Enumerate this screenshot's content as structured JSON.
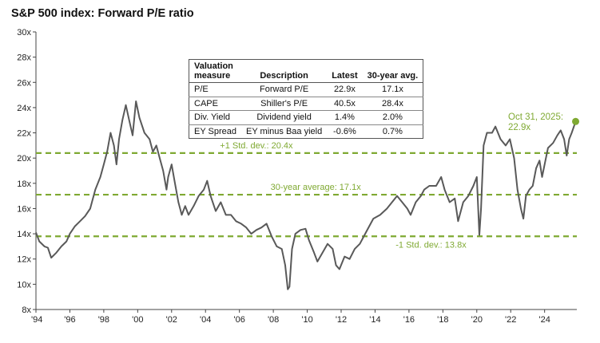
{
  "title": "S&P 500 index: Forward P/E ratio",
  "colors": {
    "line": "#595959",
    "reference": "#7fa932",
    "text": "#222222"
  },
  "chart_data": {
    "type": "line",
    "title": "S&P 500 index: Forward P/E ratio",
    "xlabel": "",
    "ylabel": "",
    "xlim": [
      1994,
      2025.9
    ],
    "ylim": [
      8,
      30
    ],
    "yticks": [
      8,
      10,
      12,
      14,
      16,
      18,
      20,
      22,
      24,
      26,
      28,
      30
    ],
    "ytick_labels": [
      "8x",
      "10x",
      "12x",
      "14x",
      "16x",
      "18x",
      "20x",
      "22x",
      "24x",
      "26x",
      "28x",
      "30x"
    ],
    "xticks": [
      1994,
      1996,
      1998,
      2000,
      2002,
      2004,
      2006,
      2008,
      2010,
      2012,
      2014,
      2016,
      2018,
      2020,
      2022,
      2024
    ],
    "xtick_labels": [
      "'94",
      "'96",
      "'98",
      "'00",
      "'02",
      "'04",
      "'06",
      "'08",
      "'10",
      "'12",
      "'14",
      "'16",
      "'18",
      "'20",
      "'22",
      "'24"
    ],
    "grid": false,
    "series": [
      {
        "points": [
          [
            1994.0,
            14.1
          ],
          [
            1994.2,
            13.4
          ],
          [
            1994.5,
            13.0
          ],
          [
            1994.7,
            12.9
          ],
          [
            1994.9,
            12.1
          ],
          [
            1995.2,
            12.5
          ],
          [
            1995.5,
            13.0
          ],
          [
            1995.8,
            13.4
          ],
          [
            1996.0,
            14.0
          ],
          [
            1996.3,
            14.6
          ],
          [
            1996.6,
            15.0
          ],
          [
            1996.9,
            15.4
          ],
          [
            1997.2,
            16.0
          ],
          [
            1997.5,
            17.5
          ],
          [
            1997.8,
            18.5
          ],
          [
            1998.0,
            19.5
          ],
          [
            1998.2,
            20.5
          ],
          [
            1998.4,
            22.0
          ],
          [
            1998.6,
            21.0
          ],
          [
            1998.75,
            19.5
          ],
          [
            1998.9,
            21.5
          ],
          [
            1999.1,
            23.0
          ],
          [
            1999.3,
            24.2
          ],
          [
            1999.5,
            23.0
          ],
          [
            1999.7,
            21.8
          ],
          [
            1999.9,
            24.5
          ],
          [
            2000.1,
            23.2
          ],
          [
            2000.4,
            22.0
          ],
          [
            2000.7,
            21.5
          ],
          [
            2000.9,
            20.5
          ],
          [
            2001.1,
            21.0
          ],
          [
            2001.3,
            20.0
          ],
          [
            2001.5,
            19.0
          ],
          [
            2001.7,
            17.5
          ],
          [
            2001.8,
            18.5
          ],
          [
            2002.0,
            19.5
          ],
          [
            2002.2,
            18.0
          ],
          [
            2002.4,
            16.5
          ],
          [
            2002.6,
            15.5
          ],
          [
            2002.8,
            16.2
          ],
          [
            2003.0,
            15.5
          ],
          [
            2003.3,
            16.2
          ],
          [
            2003.6,
            17.0
          ],
          [
            2003.9,
            17.5
          ],
          [
            2004.1,
            18.2
          ],
          [
            2004.3,
            17.0
          ],
          [
            2004.6,
            15.8
          ],
          [
            2004.9,
            16.5
          ],
          [
            2005.2,
            15.5
          ],
          [
            2005.5,
            15.5
          ],
          [
            2005.8,
            15.0
          ],
          [
            2006.1,
            14.8
          ],
          [
            2006.4,
            14.5
          ],
          [
            2006.7,
            14.0
          ],
          [
            2007.0,
            14.3
          ],
          [
            2007.3,
            14.5
          ],
          [
            2007.6,
            14.8
          ],
          [
            2007.9,
            13.8
          ],
          [
            2008.2,
            13.0
          ],
          [
            2008.5,
            12.8
          ],
          [
            2008.7,
            11.5
          ],
          [
            2008.85,
            9.6
          ],
          [
            2008.95,
            9.8
          ],
          [
            2009.1,
            12.8
          ],
          [
            2009.3,
            14.0
          ],
          [
            2009.6,
            14.3
          ],
          [
            2009.9,
            14.4
          ],
          [
            2010.1,
            13.5
          ],
          [
            2010.4,
            12.5
          ],
          [
            2010.6,
            11.8
          ],
          [
            2010.9,
            12.5
          ],
          [
            2011.2,
            13.2
          ],
          [
            2011.5,
            12.8
          ],
          [
            2011.7,
            11.5
          ],
          [
            2011.9,
            11.2
          ],
          [
            2012.2,
            12.2
          ],
          [
            2012.5,
            12.0
          ],
          [
            2012.8,
            12.8
          ],
          [
            2013.1,
            13.2
          ],
          [
            2013.5,
            14.2
          ],
          [
            2013.9,
            15.2
          ],
          [
            2014.3,
            15.5
          ],
          [
            2014.7,
            16.0
          ],
          [
            2015.0,
            16.5
          ],
          [
            2015.3,
            17.0
          ],
          [
            2015.6,
            16.5
          ],
          [
            2015.9,
            16.0
          ],
          [
            2016.1,
            15.5
          ],
          [
            2016.4,
            16.5
          ],
          [
            2016.7,
            17.0
          ],
          [
            2016.9,
            17.5
          ],
          [
            2017.2,
            17.8
          ],
          [
            2017.6,
            17.8
          ],
          [
            2017.9,
            18.5
          ],
          [
            2018.1,
            17.5
          ],
          [
            2018.4,
            16.5
          ],
          [
            2018.7,
            16.8
          ],
          [
            2018.9,
            15.0
          ],
          [
            2019.2,
            16.5
          ],
          [
            2019.5,
            17.0
          ],
          [
            2019.8,
            17.8
          ],
          [
            2020.0,
            18.5
          ],
          [
            2020.15,
            13.9
          ],
          [
            2020.25,
            16.0
          ],
          [
            2020.4,
            21.0
          ],
          [
            2020.6,
            22.0
          ],
          [
            2020.9,
            22.0
          ],
          [
            2021.1,
            22.5
          ],
          [
            2021.4,
            21.5
          ],
          [
            2021.7,
            21.0
          ],
          [
            2021.95,
            21.5
          ],
          [
            2022.2,
            20.0
          ],
          [
            2022.4,
            17.5
          ],
          [
            2022.6,
            16.0
          ],
          [
            2022.75,
            15.2
          ],
          [
            2022.9,
            17.0
          ],
          [
            2023.1,
            17.5
          ],
          [
            2023.3,
            17.8
          ],
          [
            2023.5,
            19.2
          ],
          [
            2023.7,
            19.8
          ],
          [
            2023.85,
            18.5
          ],
          [
            2024.0,
            19.5
          ],
          [
            2024.2,
            20.8
          ],
          [
            2024.5,
            21.2
          ],
          [
            2024.75,
            21.8
          ],
          [
            2024.95,
            22.2
          ],
          [
            2025.15,
            21.5
          ],
          [
            2025.3,
            20.2
          ],
          [
            2025.45,
            21.5
          ],
          [
            2025.6,
            22.0
          ],
          [
            2025.83,
            22.9
          ]
        ]
      }
    ],
    "reference_lines": [
      {
        "value": 20.4,
        "label": "+1 Std. dev.: 20.4x"
      },
      {
        "value": 17.1,
        "label": "30-year average: 17.1x"
      },
      {
        "value": 13.8,
        "label": "-1 Std. dev.: 13.8x"
      }
    ],
    "highlight": {
      "x": 2025.83,
      "y": 22.9,
      "label_lines": [
        "Oct 31, 2025:",
        "22.9x"
      ]
    }
  },
  "table": {
    "headers": [
      [
        "Valuation",
        "measure"
      ],
      [
        "Description"
      ],
      [
        "Latest"
      ],
      [
        "30-year avg."
      ]
    ],
    "rows": [
      [
        "P/E",
        "Forward P/E",
        "22.9x",
        "17.1x"
      ],
      [
        "CAPE",
        "Shiller's P/E",
        "40.5x",
        "28.4x"
      ],
      [
        "Div. Yield",
        "Dividend yield",
        "1.4%",
        "2.0%"
      ],
      [
        "EY Spread",
        "EY minus Baa yield",
        "-0.6%",
        "0.7%"
      ]
    ]
  }
}
